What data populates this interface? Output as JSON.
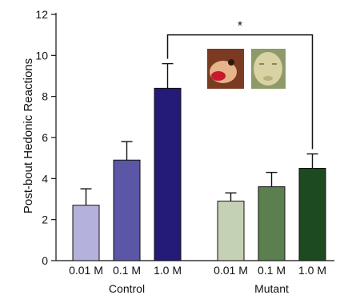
{
  "chart_data": {
    "type": "bar",
    "ylabel": "Post-bout Hedonic Reactions",
    "ylim": [
      0,
      12
    ],
    "yticks": [
      0,
      2,
      4,
      6,
      8,
      10,
      12
    ],
    "grid": false,
    "groups": [
      {
        "name": "Control",
        "bars": [
          {
            "label": "0.01 M",
            "value": 2.7,
            "error": 0.8,
            "color": "#b4b1dc"
          },
          {
            "label": "0.1 M",
            "value": 4.9,
            "error": 0.9,
            "color": "#5c56a6"
          },
          {
            "label": "1.0 M",
            "value": 8.4,
            "error": 1.2,
            "color": "#241a78"
          }
        ]
      },
      {
        "name": "Mutant",
        "bars": [
          {
            "label": "0.01 M",
            "value": 2.9,
            "error": 0.4,
            "color": "#c4d1b4"
          },
          {
            "label": "0.1 M",
            "value": 3.6,
            "error": 0.7,
            "color": "#5b7f4f"
          },
          {
            "label": "1.0 M",
            "value": 4.5,
            "error": 0.7,
            "color": "#1d4a1e"
          }
        ]
      }
    ],
    "significance": {
      "label": "*",
      "from": "Control 1.0 M",
      "to": "Mutant 1.0 M"
    }
  },
  "inset_images": [
    {
      "icon": "rat-face-reaction-photo",
      "colors": [
        "#7a3b22",
        "#c81a2c",
        "#e6b48a"
      ]
    },
    {
      "icon": "infant-face-photo",
      "colors": [
        "#8e9a6a",
        "#d9d2a2",
        "#b9b07a"
      ]
    }
  ]
}
